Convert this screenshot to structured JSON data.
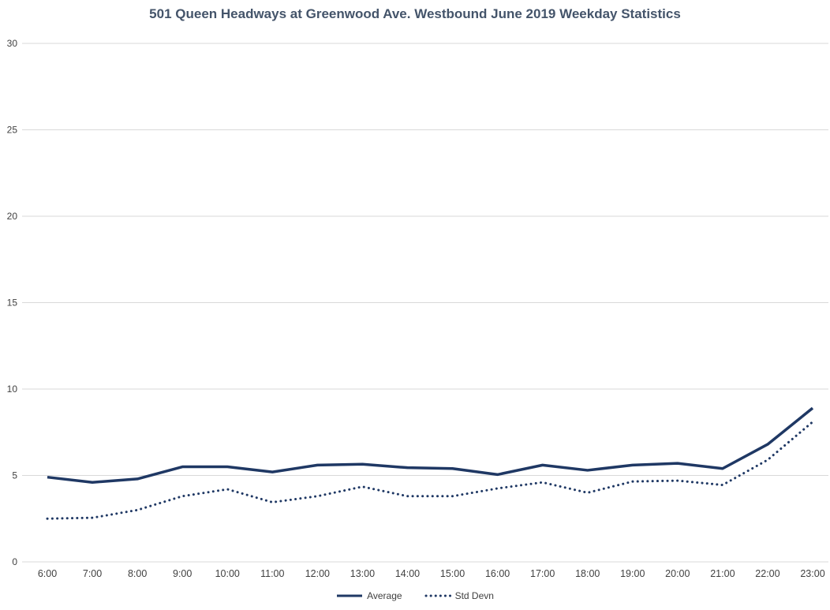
{
  "title": "501 Queen Headways at Greenwood Ave. Westbound June 2019 Weekday Statistics",
  "colors": {
    "series_line": "#1F3864",
    "gridline": "#D9D9D9",
    "title_text": "#44546A",
    "tick_text": "#404040"
  },
  "legend": {
    "average_label": "Average",
    "std_devn_label": "Std Devn"
  },
  "chart_data": {
    "type": "line",
    "title": "501 Queen Headways at Greenwood Ave. Westbound June 2019 Weekday Statistics",
    "categories": [
      "6:00",
      "7:00",
      "8:00",
      "9:00",
      "10:00",
      "11:00",
      "12:00",
      "13:00",
      "14:00",
      "15:00",
      "16:00",
      "17:00",
      "18:00",
      "19:00",
      "20:00",
      "21:00",
      "22:00",
      "23:00"
    ],
    "series": [
      {
        "name": "Average",
        "style": "solid",
        "values": [
          4.9,
          4.6,
          4.8,
          5.5,
          5.5,
          5.2,
          5.6,
          5.65,
          5.45,
          5.4,
          5.05,
          5.6,
          5.3,
          5.6,
          5.7,
          5.4,
          6.8,
          8.9
        ]
      },
      {
        "name": "Std Devn",
        "style": "dotted",
        "values": [
          2.5,
          2.55,
          3.0,
          3.8,
          4.2,
          3.45,
          3.8,
          4.35,
          3.8,
          3.8,
          4.25,
          4.6,
          4.0,
          4.65,
          4.7,
          4.45,
          5.9,
          8.1
        ]
      }
    ],
    "xlabel": "",
    "ylabel": "",
    "ylim": [
      0,
      30
    ],
    "yticks": [
      0,
      5,
      10,
      15,
      20,
      25,
      30
    ],
    "grid": "horizontal",
    "legend_position": "bottom"
  }
}
